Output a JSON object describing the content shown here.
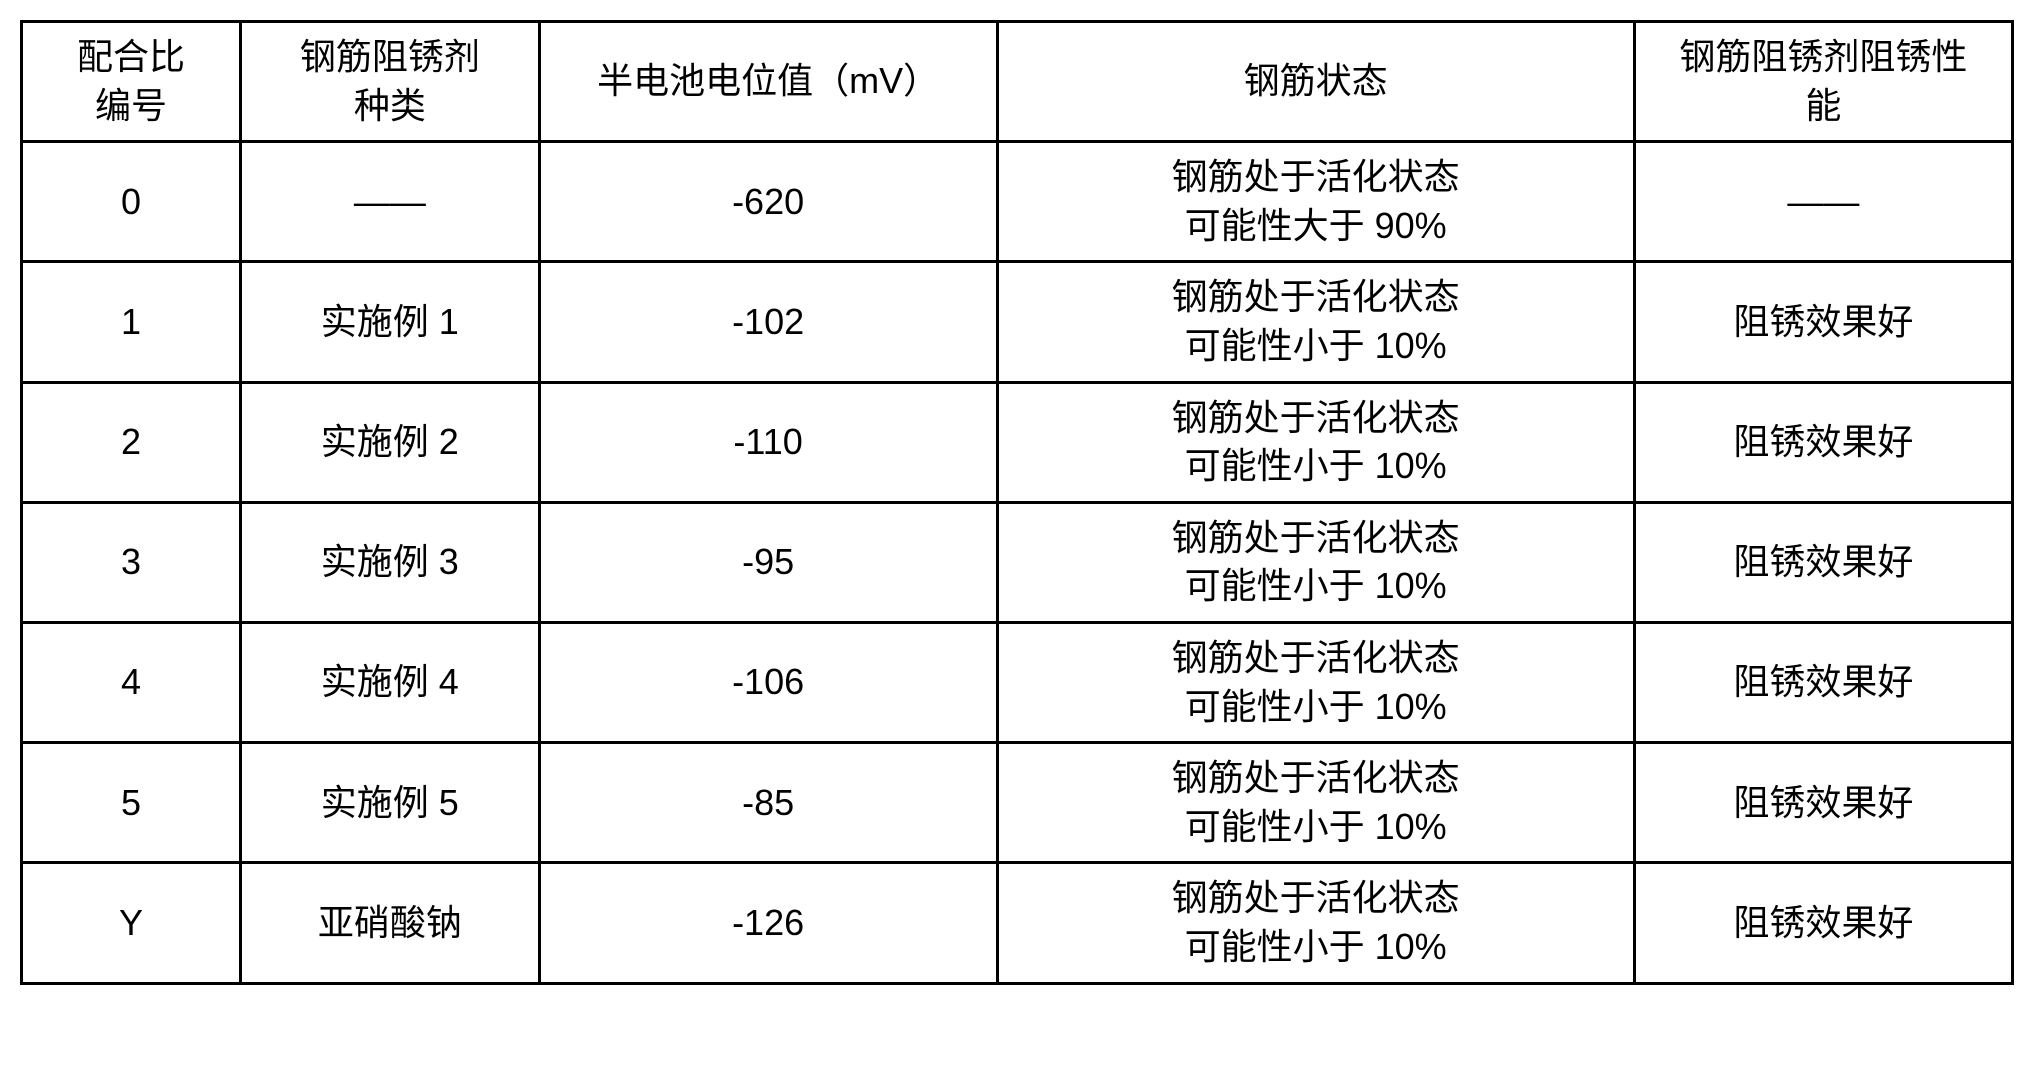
{
  "table": {
    "columns": [
      {
        "line1": "配合比",
        "line2": "编号"
      },
      {
        "line1": "钢筋阻锈剂",
        "line2": "种类"
      },
      {
        "line1": "半电池电位值（mV）",
        "line2": ""
      },
      {
        "line1": "钢筋状态",
        "line2": ""
      },
      {
        "line1": "钢筋阻锈剂阻锈性",
        "line2": "能"
      }
    ],
    "rows": [
      {
        "id": "0",
        "type": "——",
        "potential": "-620",
        "state_l1": "钢筋处于活化状态",
        "state_l2": "可能性大于 90%",
        "perf": "——"
      },
      {
        "id": "1",
        "type": "实施例 1",
        "potential": "-102",
        "state_l1": "钢筋处于活化状态",
        "state_l2": "可能性小于 10%",
        "perf": "阻锈效果好"
      },
      {
        "id": "2",
        "type": "实施例 2",
        "potential": "-110",
        "state_l1": "钢筋处于活化状态",
        "state_l2": "可能性小于 10%",
        "perf": "阻锈效果好"
      },
      {
        "id": "3",
        "type": "实施例 3",
        "potential": "-95",
        "state_l1": "钢筋处于活化状态",
        "state_l2": "可能性小于 10%",
        "perf": "阻锈效果好"
      },
      {
        "id": "4",
        "type": "实施例 4",
        "potential": "-106",
        "state_l1": "钢筋处于活化状态",
        "state_l2": "可能性小于 10%",
        "perf": "阻锈效果好"
      },
      {
        "id": "5",
        "type": "实施例 5",
        "potential": "-85",
        "state_l1": "钢筋处于活化状态",
        "state_l2": "可能性小于 10%",
        "perf": "阻锈效果好"
      },
      {
        "id": "Y",
        "type": "亚硝酸钠",
        "potential": "-126",
        "state_l1": "钢筋处于活化状态",
        "state_l2": "可能性小于 10%",
        "perf": "阻锈效果好"
      }
    ],
    "border_color": "#000000",
    "background_color": "#ffffff",
    "font_size_pt": 27,
    "text_color": "#000000"
  }
}
